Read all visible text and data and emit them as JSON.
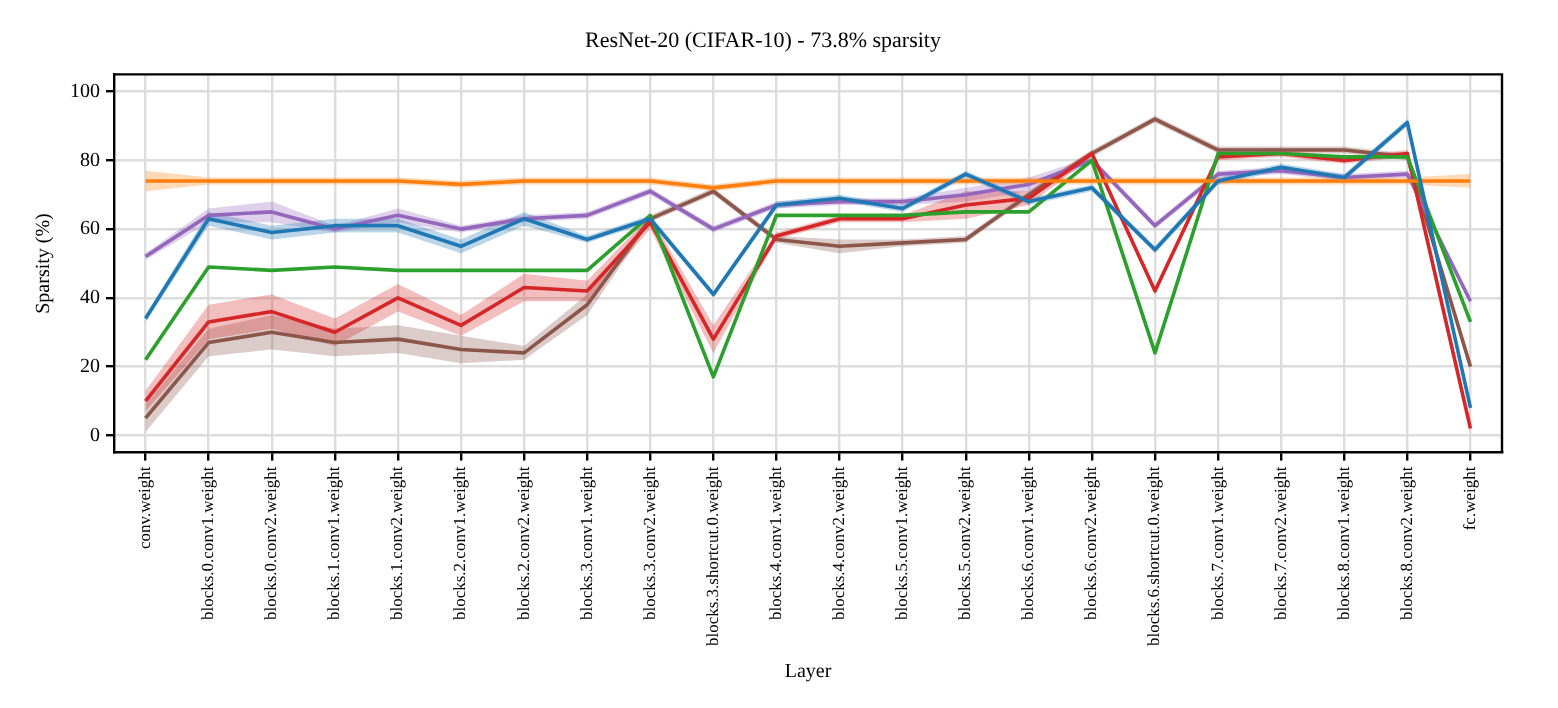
{
  "chart_data": {
    "type": "line",
    "title": "ResNet-20 (CIFAR-10) - 73.8% sparsity",
    "xlabel": "Layer",
    "ylabel": "Sparsity (%)",
    "categories": [
      "conv.weight",
      "blocks.0.conv1.weight",
      "blocks.0.conv2.weight",
      "blocks.1.conv1.weight",
      "blocks.1.conv2.weight",
      "blocks.2.conv1.weight",
      "blocks.2.conv2.weight",
      "blocks.3.conv1.weight",
      "blocks.3.conv2.weight",
      "blocks.3.shortcut.0.weight",
      "blocks.4.conv1.weight",
      "blocks.4.conv2.weight",
      "blocks.5.conv1.weight",
      "blocks.5.conv2.weight",
      "blocks.6.conv1.weight",
      "blocks.6.conv2.weight",
      "blocks.6.shortcut.0.weight",
      "blocks.7.conv1.weight",
      "blocks.7.conv2.weight",
      "blocks.8.conv1.weight",
      "blocks.8.conv2.weight",
      "fc.weight"
    ],
    "series": [
      {
        "color": "#1f77b4",
        "values": [
          34,
          63,
          59,
          61,
          61,
          55,
          63,
          57,
          63,
          41,
          67,
          69,
          66,
          76,
          68,
          72,
          54,
          74,
          78,
          75,
          91,
          8
        ],
        "lower": [
          33,
          61,
          57,
          59,
          59,
          53,
          61,
          56,
          62,
          40,
          66,
          68,
          65,
          75,
          67,
          71,
          53,
          73,
          77,
          74,
          90,
          7
        ],
        "upper": [
          35,
          65,
          61,
          63,
          63,
          57,
          65,
          58,
          64,
          42,
          68,
          70,
          67,
          77,
          69,
          73,
          55,
          75,
          79,
          76,
          92,
          9
        ]
      },
      {
        "color": "#ff7f0e",
        "values": [
          74,
          74,
          74,
          74,
          74,
          73,
          74,
          74,
          74,
          72,
          74,
          74,
          74,
          74,
          74,
          74,
          74,
          74,
          74,
          74,
          74,
          74
        ],
        "lower": [
          71,
          73,
          73,
          73,
          73,
          72,
          73,
          73,
          73,
          71,
          73,
          73,
          73,
          73,
          73,
          73,
          73,
          73,
          73,
          73,
          73,
          72
        ],
        "upper": [
          77,
          75,
          75,
          75,
          75,
          74,
          75,
          75,
          75,
          73,
          75,
          75,
          75,
          75,
          75,
          75,
          75,
          75,
          75,
          75,
          75,
          76
        ]
      },
      {
        "color": "#2ca02c",
        "values": [
          22,
          49,
          48,
          49,
          48,
          48,
          48,
          48,
          64,
          17,
          64,
          64,
          64,
          65,
          65,
          80,
          24,
          82,
          82,
          81,
          81,
          33
        ]
      },
      {
        "color": "#d62728",
        "values": [
          10,
          33,
          36,
          30,
          40,
          32,
          43,
          42,
          62,
          28,
          58,
          63,
          63,
          67,
          69,
          82,
          42,
          81,
          82,
          80,
          82,
          2
        ],
        "lower": [
          7,
          28,
          31,
          26,
          36,
          29,
          39,
          39,
          60,
          24,
          57,
          62,
          62,
          63,
          67,
          81,
          41,
          80,
          81,
          79,
          81,
          1
        ],
        "upper": [
          13,
          38,
          41,
          34,
          44,
          35,
          47,
          45,
          64,
          32,
          59,
          64,
          64,
          71,
          71,
          83,
          43,
          82,
          83,
          81,
          83,
          3
        ]
      },
      {
        "color": "#9467bd",
        "values": [
          52,
          64,
          65,
          60,
          64,
          60,
          63,
          64,
          71,
          60,
          67,
          68,
          68,
          70,
          73,
          80,
          61,
          76,
          77,
          75,
          76,
          39
        ],
        "lower": [
          51,
          62,
          62,
          59,
          62,
          59,
          62,
          63,
          70,
          59,
          66,
          67,
          67,
          68,
          71,
          79,
          60,
          75,
          76,
          74,
          75,
          38
        ],
        "upper": [
          53,
          66,
          68,
          61,
          66,
          61,
          64,
          65,
          72,
          61,
          68,
          69,
          69,
          72,
          75,
          81,
          62,
          77,
          78,
          76,
          77,
          40
        ]
      },
      {
        "color": "#8c564b",
        "values": [
          5,
          27,
          30,
          27,
          28,
          25,
          24,
          38,
          63,
          71,
          57,
          55,
          56,
          57,
          70,
          82,
          92,
          83,
          83,
          83,
          81,
          20
        ],
        "lower": [
          1,
          23,
          25,
          23,
          24,
          21,
          22,
          35,
          62,
          70,
          56,
          53,
          55,
          56,
          69,
          81,
          91,
          82,
          82,
          82,
          80,
          19
        ],
        "upper": [
          9,
          31,
          35,
          31,
          32,
          29,
          26,
          41,
          64,
          72,
          58,
          57,
          57,
          58,
          71,
          83,
          93,
          84,
          84,
          84,
          82,
          21
        ]
      }
    ],
    "ylim": [
      -5,
      105
    ],
    "yticks": [
      0,
      20,
      40,
      60,
      80,
      100
    ],
    "grid": true,
    "legend": false,
    "marker": "none",
    "line_style": "solid"
  }
}
